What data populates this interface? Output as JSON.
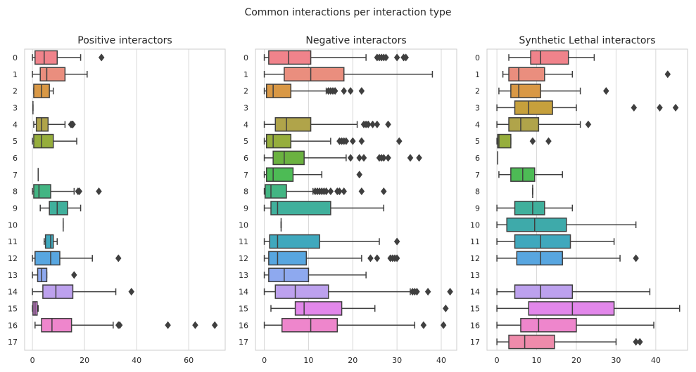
{
  "figure": {
    "suptitle": "Common interactions per interaction type"
  },
  "style": {
    "box_edge": "#3f3f3f",
    "grid": "#d8d8d8",
    "spine": "#cccccc"
  },
  "chart_data": [
    {
      "type": "box",
      "orientation": "horizontal",
      "title": "Positive interactors",
      "categories": [
        "0",
        "1",
        "2",
        "3",
        "4",
        "5",
        "6",
        "7",
        "8",
        "9",
        "10",
        "11",
        "12",
        "13",
        "14",
        "15",
        "16",
        "17"
      ],
      "xlim": [
        -3,
        74
      ],
      "xticks": [
        0,
        20,
        40,
        60
      ],
      "grid": "vertical",
      "boxes": [
        {
          "category": "0",
          "color": "#f0838b",
          "whisker_low": 0,
          "q1": 1,
          "median": 4.5,
          "q3": 9.5,
          "whisker_high": 18.5,
          "fliers": [
            26.5
          ]
        },
        {
          "category": "1",
          "color": "#ea8e7e",
          "whisker_low": 0,
          "q1": 3,
          "median": 5.5,
          "q3": 12.5,
          "whisker_high": 21,
          "fliers": []
        },
        {
          "category": "2",
          "color": "#d99845",
          "whisker_low": 0.5,
          "q1": 0.5,
          "median": 3.5,
          "q3": 6.5,
          "whisker_high": 8,
          "fliers": []
        },
        {
          "category": "3",
          "color": "#c6a03c",
          "whisker_low": 0.2,
          "q1": 0.2,
          "median": 0.2,
          "q3": 0.2,
          "whisker_high": 0.2,
          "fliers": []
        },
        {
          "category": "4",
          "color": "#b0a44a",
          "whisker_low": 0.5,
          "q1": 1.5,
          "median": 3.5,
          "q3": 6,
          "whisker_high": 12.5,
          "fliers": [
            14.8,
            15.2,
            15.5
          ]
        },
        {
          "category": "5",
          "color": "#96ae3c",
          "whisker_low": 0,
          "q1": 0.5,
          "median": 3.5,
          "q3": 8,
          "whisker_high": 17,
          "fliers": []
        },
        {
          "category": "6",
          "color": "#6bb240",
          "empty": true
        },
        {
          "category": "7",
          "color": "#4dbb55",
          "whisker_low": 2.2,
          "q1": 2.2,
          "median": 2.2,
          "q3": 2.2,
          "whisker_high": 2.2,
          "fliers": []
        },
        {
          "category": "8",
          "color": "#43b583",
          "whisker_low": 0,
          "q1": 0.5,
          "median": 2.5,
          "q3": 7,
          "whisker_high": 16,
          "fliers": [
            17.5,
            18,
            25.5
          ]
        },
        {
          "category": "9",
          "color": "#40b09c",
          "whisker_low": 3,
          "q1": 6.5,
          "median": 9.5,
          "q3": 13.5,
          "whisker_high": 18.5,
          "fliers": []
        },
        {
          "category": "10",
          "color": "#3eaaaa",
          "whisker_low": 11.8,
          "q1": 11.8,
          "median": 11.8,
          "q3": 11.8,
          "whisker_high": 11.8,
          "fliers": []
        },
        {
          "category": "11",
          "color": "#3fa8bd",
          "whisker_low": 4.5,
          "q1": 5,
          "median": 7,
          "q3": 8,
          "whisker_high": 9.5,
          "fliers": []
        },
        {
          "category": "12",
          "color": "#58a6e0",
          "whisker_low": 0,
          "q1": 1,
          "median": 7,
          "q3": 10.5,
          "whisker_high": 23,
          "fliers": [
            33
          ]
        },
        {
          "category": "13",
          "color": "#8ea9ef",
          "whisker_low": 0,
          "q1": 2,
          "median": 3.5,
          "q3": 5.5,
          "whisker_high": 5.5,
          "fliers": [
            16
          ]
        },
        {
          "category": "14",
          "color": "#bda1ee",
          "whisker_low": 0,
          "q1": 4,
          "median": 9,
          "q3": 15.5,
          "whisker_high": 32,
          "fliers": [
            38
          ]
        },
        {
          "category": "15",
          "color": "#e287ea",
          "whisker_low": 0,
          "q1": 0.2,
          "median": 1,
          "q3": 1.8,
          "whisker_high": 2.2,
          "fliers": []
        },
        {
          "category": "16",
          "color": "#ee86cc",
          "whisker_low": 1,
          "q1": 3.5,
          "median": 7.5,
          "q3": 15,
          "whisker_high": 31,
          "fliers": [
            33,
            33.5,
            52,
            62.5,
            70
          ]
        },
        {
          "category": "17",
          "color": "#ee8bab",
          "empty": true
        }
      ]
    },
    {
      "type": "box",
      "orientation": "horizontal",
      "title": "Negative interactors",
      "categories": [
        "0",
        "1",
        "2",
        "3",
        "4",
        "5",
        "6",
        "7",
        "8",
        "9",
        "10",
        "11",
        "12",
        "13",
        "14",
        "15",
        "16",
        "17"
      ],
      "xlim": [
        -2,
        43.5
      ],
      "xticks": [
        0,
        10,
        20,
        30,
        40
      ],
      "grid": "vertical",
      "boxes": [
        {
          "category": "0",
          "color": "#f0838b",
          "whisker_low": 0,
          "q1": 1,
          "median": 5.5,
          "q3": 10.5,
          "whisker_high": 23,
          "fliers": [
            25.5,
            26,
            26.5,
            27,
            27.5,
            30,
            31.5,
            32
          ]
        },
        {
          "category": "1",
          "color": "#ea8e7e",
          "whisker_low": 0,
          "q1": 4.5,
          "median": 10.5,
          "q3": 18,
          "whisker_high": 38,
          "fliers": []
        },
        {
          "category": "2",
          "color": "#d99845",
          "whisker_low": 0,
          "q1": 0.5,
          "median": 2,
          "q3": 6,
          "whisker_high": 14,
          "fliers": [
            14.5,
            15,
            15.5,
            16,
            18,
            19.5,
            22
          ]
        },
        {
          "category": "3",
          "color": "#c6a03c",
          "empty": true
        },
        {
          "category": "4",
          "color": "#b0a44a",
          "whisker_low": 0,
          "q1": 2.5,
          "median": 5,
          "q3": 10.5,
          "whisker_high": 21,
          "fliers": [
            22.5,
            23,
            23.5,
            24.5,
            25.5,
            28
          ]
        },
        {
          "category": "5",
          "color": "#96ae3c",
          "whisker_low": 0,
          "q1": 0.5,
          "median": 2,
          "q3": 6,
          "whisker_high": 15,
          "fliers": [
            17,
            17.5,
            18,
            18.5,
            20,
            22,
            30.5
          ]
        },
        {
          "category": "6",
          "color": "#6bb240",
          "whisker_low": 0,
          "q1": 2,
          "median": 4.5,
          "q3": 9,
          "whisker_high": 18.5,
          "fliers": [
            19.5,
            21.5,
            22.5,
            26,
            26.5,
            27,
            28,
            33,
            35
          ]
        },
        {
          "category": "7",
          "color": "#4dbb55",
          "whisker_low": 0,
          "q1": 0.5,
          "median": 2,
          "q3": 6.5,
          "whisker_high": 13,
          "fliers": [
            21.5
          ]
        },
        {
          "category": "8",
          "color": "#43b583",
          "whisker_low": 0,
          "q1": 0.2,
          "median": 1.5,
          "q3": 5,
          "whisker_high": 11,
          "fliers": [
            11.5,
            12,
            12.5,
            13,
            13.5,
            14,
            15,
            16.5,
            17,
            18,
            22,
            27
          ]
        },
        {
          "category": "9",
          "color": "#40b09c",
          "whisker_low": 0,
          "q1": 1.5,
          "median": 3,
          "q3": 15,
          "whisker_high": 27,
          "fliers": []
        },
        {
          "category": "10",
          "color": "#3eaaaa",
          "whisker_low": 3.8,
          "q1": 3.8,
          "median": 3.8,
          "q3": 3.8,
          "whisker_high": 3.8,
          "fliers": []
        },
        {
          "category": "11",
          "color": "#3fa8bd",
          "whisker_low": 0,
          "q1": 1.2,
          "median": 3,
          "q3": 12.5,
          "whisker_high": 26,
          "fliers": [
            30
          ]
        },
        {
          "category": "12",
          "color": "#58a6e0",
          "whisker_low": 0,
          "q1": 1,
          "median": 3,
          "q3": 9.5,
          "whisker_high": 22,
          "fliers": [
            24,
            25.5,
            28.5,
            29,
            29.5,
            30
          ]
        },
        {
          "category": "13",
          "color": "#8ea9ef",
          "whisker_low": 0,
          "q1": 1,
          "median": 4.5,
          "q3": 10,
          "whisker_high": 23,
          "fliers": []
        },
        {
          "category": "14",
          "color": "#bda1ee",
          "whisker_low": 0,
          "q1": 2.5,
          "median": 7,
          "q3": 14.5,
          "whisker_high": 33,
          "fliers": [
            33.5,
            34,
            34.5,
            37,
            42
          ]
        },
        {
          "category": "15",
          "color": "#e287ea",
          "whisker_low": 1.5,
          "q1": 7,
          "median": 9,
          "q3": 17.5,
          "whisker_high": 25,
          "fliers": [
            41
          ]
        },
        {
          "category": "16",
          "color": "#ee86cc",
          "whisker_low": 0,
          "q1": 4,
          "median": 10.5,
          "q3": 16.5,
          "whisker_high": 34,
          "fliers": [
            36,
            40.5
          ]
        },
        {
          "category": "17",
          "color": "#ee8bab",
          "empty": true
        }
      ]
    },
    {
      "type": "box",
      "orientation": "horizontal",
      "title": "Synthetic Lethal interactors",
      "categories": [
        "0",
        "1",
        "2",
        "3",
        "4",
        "5",
        "6",
        "7",
        "8",
        "9",
        "10",
        "11",
        "12",
        "13",
        "14",
        "15",
        "16",
        "17"
      ],
      "xlim": [
        -2.5,
        48
      ],
      "xticks": [
        0,
        10,
        20,
        30,
        40
      ],
      "grid": "vertical",
      "boxes": [
        {
          "category": "0",
          "color": "#f0838b",
          "whisker_low": 3,
          "q1": 8.5,
          "median": 11,
          "q3": 18,
          "whisker_high": 24.5,
          "fliers": []
        },
        {
          "category": "1",
          "color": "#ea8e7e",
          "whisker_low": 1.5,
          "q1": 3,
          "median": 5.5,
          "q3": 12,
          "whisker_high": 19,
          "fliers": [
            43
          ]
        },
        {
          "category": "2",
          "color": "#d99845",
          "whisker_low": 0.5,
          "q1": 3.5,
          "median": 5.5,
          "q3": 11,
          "whisker_high": 21,
          "fliers": [
            27.5
          ]
        },
        {
          "category": "3",
          "color": "#c6a03c",
          "whisker_low": 0,
          "q1": 4.5,
          "median": 8,
          "q3": 14,
          "whisker_high": 20,
          "fliers": [
            34.5,
            41,
            45
          ]
        },
        {
          "category": "4",
          "color": "#b0a44a",
          "whisker_low": 0,
          "q1": 3,
          "median": 6,
          "q3": 10.5,
          "whisker_high": 21,
          "fliers": [
            23
          ]
        },
        {
          "category": "5",
          "color": "#96ae3c",
          "whisker_low": 0,
          "q1": 0.2,
          "median": 0.5,
          "q3": 3.5,
          "whisker_high": 3.5,
          "fliers": [
            9,
            13
          ]
        },
        {
          "category": "6",
          "color": "#6bb240",
          "whisker_low": 0.2,
          "q1": 0.2,
          "median": 0.2,
          "q3": 0.2,
          "whisker_high": 0.2,
          "fliers": []
        },
        {
          "category": "7",
          "color": "#4dbb55",
          "whisker_low": 0.5,
          "q1": 3.5,
          "median": 6.5,
          "q3": 9.5,
          "whisker_high": 16.5,
          "fliers": []
        },
        {
          "category": "8",
          "color": "#43b583",
          "whisker_low": 9,
          "q1": 9,
          "median": 9,
          "q3": 9,
          "whisker_high": 9,
          "fliers": []
        },
        {
          "category": "9",
          "color": "#40b09c",
          "whisker_low": 0,
          "q1": 4.5,
          "median": 9,
          "q3": 12,
          "whisker_high": 19,
          "fliers": []
        },
        {
          "category": "10",
          "color": "#3eaaaa",
          "whisker_low": 0,
          "q1": 2.5,
          "median": 9.5,
          "q3": 17.5,
          "whisker_high": 35,
          "fliers": []
        },
        {
          "category": "11",
          "color": "#3fa8bd",
          "whisker_low": 0,
          "q1": 4.5,
          "median": 11,
          "q3": 18.5,
          "whisker_high": 29.5,
          "fliers": []
        },
        {
          "category": "12",
          "color": "#58a6e0",
          "whisker_low": 0,
          "q1": 5,
          "median": 11,
          "q3": 16.5,
          "whisker_high": 31,
          "fliers": [
            35
          ]
        },
        {
          "category": "13",
          "color": "#8ea9ef",
          "empty": true
        },
        {
          "category": "14",
          "color": "#bda1ee",
          "whisker_low": 0,
          "q1": 4.5,
          "median": 11,
          "q3": 19,
          "whisker_high": 38.5,
          "fliers": []
        },
        {
          "category": "15",
          "color": "#e287ea",
          "whisker_low": 0,
          "q1": 8,
          "median": 19,
          "q3": 29.5,
          "whisker_high": 46,
          "fliers": []
        },
        {
          "category": "16",
          "color": "#ee86cc",
          "whisker_low": 0,
          "q1": 6,
          "median": 10.5,
          "q3": 20,
          "whisker_high": 39.5,
          "fliers": []
        },
        {
          "category": "17",
          "color": "#ee8bab",
          "whisker_low": 0,
          "q1": 3,
          "median": 7,
          "q3": 14.5,
          "whisker_high": 30,
          "fliers": [
            35,
            36
          ]
        }
      ]
    }
  ]
}
